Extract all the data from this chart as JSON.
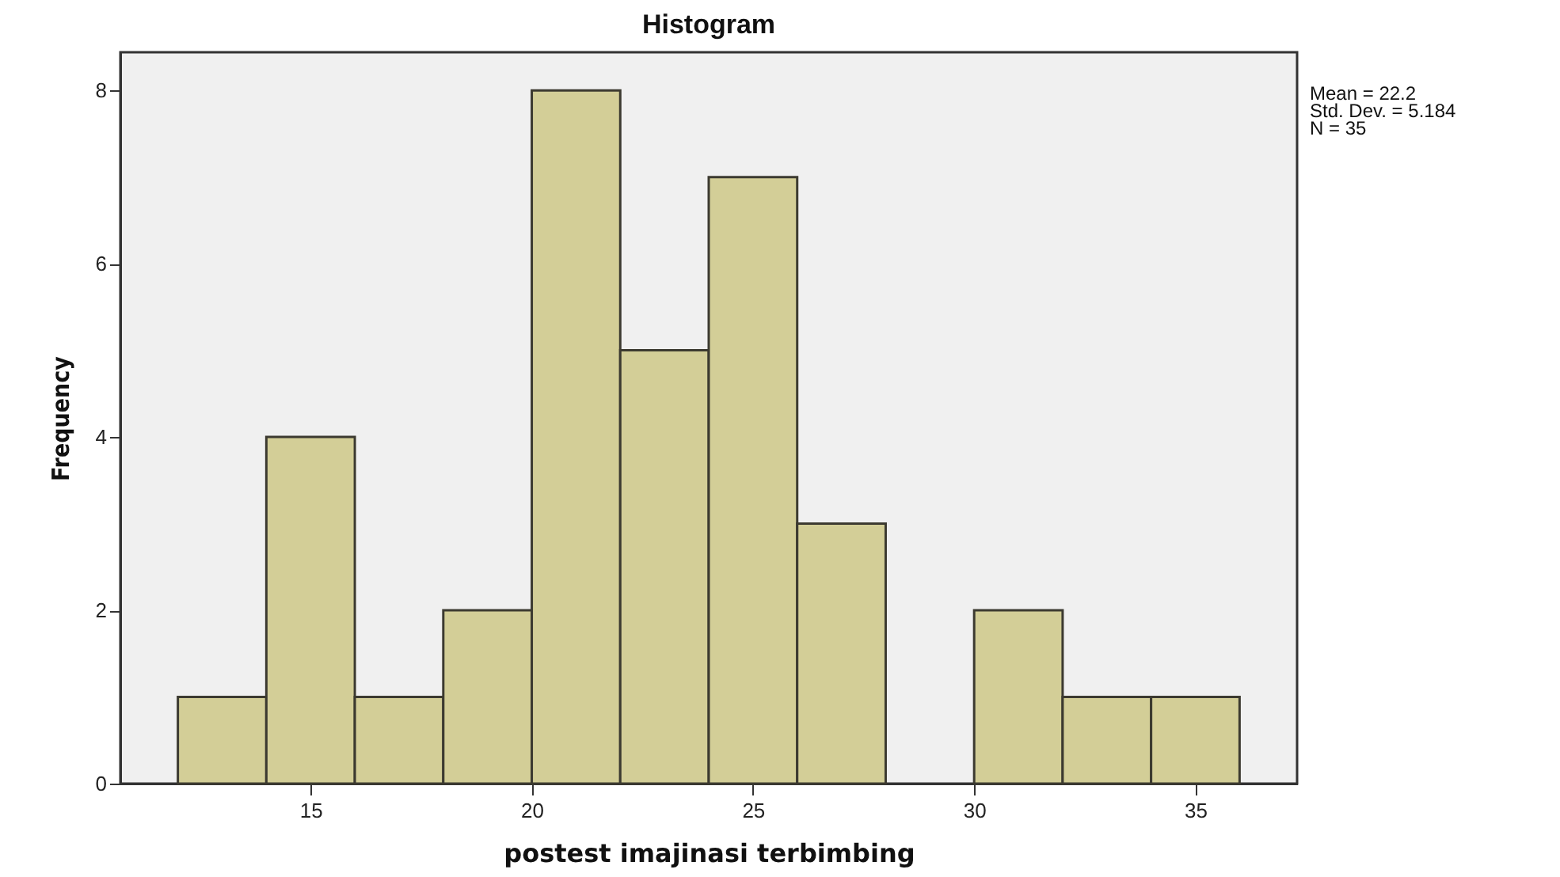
{
  "chart_data": {
    "type": "histogram",
    "title": "Histogram",
    "xlabel": "postest imajinasi terbimbing",
    "ylabel": "Frequency",
    "bins": [
      12,
      14,
      16,
      18,
      20,
      22,
      24,
      26,
      28,
      30,
      32,
      34,
      36
    ],
    "values": [
      1,
      4,
      1,
      2,
      8,
      5,
      7,
      3,
      0,
      2,
      1,
      1
    ],
    "color": "#d3ce97",
    "xlim": [
      10.7,
      37.3
    ],
    "xticks": [
      15,
      20,
      25,
      30,
      35
    ],
    "ylim": [
      0,
      8.44
    ],
    "yticks": [
      0,
      2,
      4,
      6,
      8
    ],
    "grid": false,
    "annotations": [
      "Mean = 22.2",
      "Std. Dev. = 5.184",
      "N = 35"
    ]
  }
}
